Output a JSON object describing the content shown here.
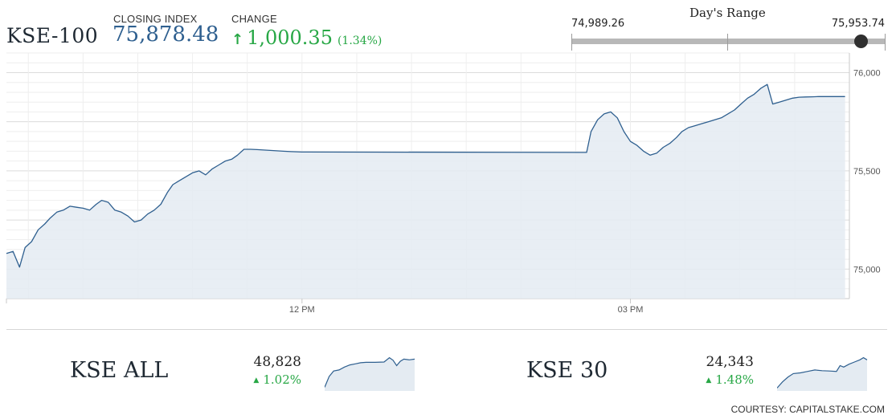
{
  "header": {
    "index_name": "KSE-100",
    "closing_label": "CLOSING INDEX",
    "closing_value": "75,878.48",
    "change_label": "CHANGE",
    "change_arrow_icon": "arrow-up-icon",
    "change_value": "1,000.35",
    "change_percent": "(1.34%)",
    "positive_color": "#27a745",
    "value_color": "#2e5f8f"
  },
  "days_range": {
    "title": "Day's Range",
    "low": "74,989.26",
    "high": "75,953.74",
    "low_value": 74989.26,
    "high_value": 75953.74,
    "current_value": 75878.48
  },
  "chart_data": {
    "type": "area",
    "title": "",
    "xlabel": "",
    "ylabel": "",
    "ylim": [
      74850,
      76100
    ],
    "y_ticks": [
      75000,
      75500,
      76000
    ],
    "y_tick_labels": [
      "75,000",
      "75,500",
      "76,000"
    ],
    "x_ticks": [
      12,
      15
    ],
    "x_tick_labels": [
      "12 PM",
      "03 PM"
    ],
    "xlim": [
      9.3,
      17.0
    ],
    "grid": true,
    "line_color": "#2e5f8f",
    "fill_color": "#e4ebf2",
    "series": [
      {
        "x": [
          9.3,
          9.36,
          9.42,
          9.47,
          9.53,
          9.59,
          9.65,
          9.7,
          9.76,
          9.82,
          9.88,
          9.94,
          10.0,
          10.06,
          10.12,
          10.17,
          10.23,
          10.29,
          10.35,
          10.41,
          10.47,
          10.53,
          10.59,
          10.65,
          10.71,
          10.77,
          10.82,
          10.88,
          10.94,
          11.0,
          11.06,
          11.12,
          11.18,
          11.24,
          11.3,
          11.36,
          11.41,
          11.47,
          11.53,
          11.59,
          11.65,
          11.71,
          11.77,
          11.83,
          11.9,
          12.0,
          14.6,
          14.64,
          14.7,
          14.76,
          14.82,
          14.88,
          14.94,
          15.0,
          15.06,
          15.12,
          15.18,
          15.24,
          15.3,
          15.36,
          15.42,
          15.47,
          15.53,
          15.59,
          15.65,
          15.71,
          15.77,
          15.83,
          15.89,
          15.95,
          16.01,
          16.07,
          16.13,
          16.19,
          16.25,
          16.3,
          16.36,
          16.42,
          16.48,
          16.54,
          16.6,
          16.66,
          16.72,
          16.78,
          16.84,
          16.9,
          16.96
        ],
        "values": [
          75080,
          75090,
          75010,
          75110,
          75140,
          75200,
          75230,
          75260,
          75290,
          75300,
          75320,
          75315,
          75310,
          75300,
          75330,
          75350,
          75340,
          75300,
          75290,
          75270,
          75240,
          75250,
          75280,
          75300,
          75330,
          75390,
          75430,
          75450,
          75470,
          75490,
          75500,
          75480,
          75510,
          75530,
          75550,
          75560,
          75580,
          75610,
          75610,
          75608,
          75606,
          75604,
          75602,
          75600,
          75598,
          75596,
          75594,
          75700,
          75760,
          75790,
          75800,
          75770,
          75700,
          75650,
          75630,
          75600,
          75580,
          75590,
          75620,
          75640,
          75670,
          75700,
          75720,
          75730,
          75740,
          75750,
          75760,
          75770,
          75790,
          75810,
          75840,
          75870,
          75890,
          75920,
          75940,
          75840,
          75850,
          75860,
          75870,
          75875,
          75876,
          75877,
          75878,
          75878,
          75878,
          75878,
          75878
        ]
      }
    ]
  },
  "mini_indices": [
    {
      "name": "KSE ALL",
      "value": "48,828",
      "arrow_icon": "triangle-up-icon",
      "change": "1.02%",
      "sparkline": [
        10,
        40,
        55,
        58,
        66,
        72,
        75,
        78,
        79,
        79,
        80,
        92,
        85,
        70,
        82,
        88,
        86,
        88
      ],
      "spark_x": [
        0,
        5,
        10,
        16,
        22,
        28,
        34,
        40,
        46,
        56,
        66,
        72,
        76,
        80,
        84,
        88,
        94,
        100
      ]
    },
    {
      "name": "KSE 30",
      "value": "24,343",
      "arrow_icon": "triangle-up-icon",
      "change": "1.48%",
      "sparkline": [
        8,
        25,
        38,
        48,
        50,
        54,
        58,
        56,
        55,
        54,
        70,
        66,
        74,
        80,
        86,
        92,
        86
      ],
      "spark_x": [
        0,
        6,
        12,
        18,
        26,
        34,
        42,
        50,
        58,
        66,
        70,
        74,
        80,
        86,
        92,
        96,
        100
      ]
    }
  ],
  "footer": {
    "courtesy": "COURTESY: CAPITALSTAKE.COM"
  }
}
